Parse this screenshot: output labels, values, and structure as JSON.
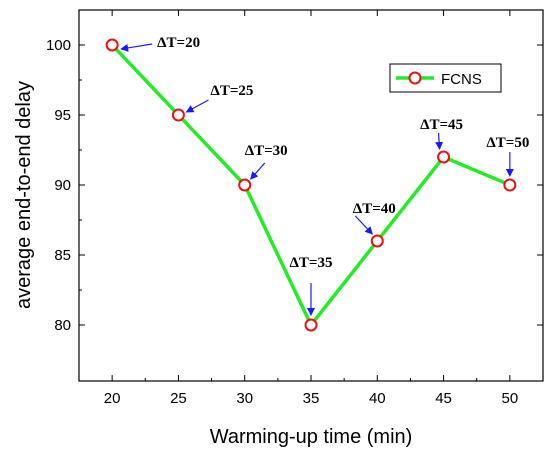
{
  "chart_data": {
    "type": "line",
    "title": "",
    "xlabel": "Warming-up time (min)",
    "ylabel": "average end-to-end delay",
    "x": [
      20,
      25,
      30,
      35,
      40,
      45,
      50
    ],
    "xticks": [
      20,
      25,
      30,
      35,
      40,
      45,
      50
    ],
    "yticks": [
      80,
      85,
      90,
      95,
      100
    ],
    "xlim": [
      17.5,
      52.5
    ],
    "ylim": [
      76,
      102.5
    ],
    "grid": false,
    "legend_position": "top-right",
    "series": [
      {
        "name": "FCNS",
        "values": [
          100,
          95,
          90,
          80,
          86,
          92,
          90
        ],
        "line_color": "#22ee22",
        "marker_color": "#ee1111"
      }
    ],
    "annotations": [
      {
        "text": "ΔT=20",
        "x": 20,
        "y": 100
      },
      {
        "text": "ΔT=25",
        "x": 25,
        "y": 95
      },
      {
        "text": "ΔT=30",
        "x": 30,
        "y": 90
      },
      {
        "text": "ΔT=35",
        "x": 35,
        "y": 80
      },
      {
        "text": "ΔT=40",
        "x": 40,
        "y": 86
      },
      {
        "text": "ΔT=45",
        "x": 45,
        "y": 92
      },
      {
        "text": "ΔT=50",
        "x": 50,
        "y": 90
      }
    ],
    "annotation_arrow_color": "#1a1aff"
  }
}
